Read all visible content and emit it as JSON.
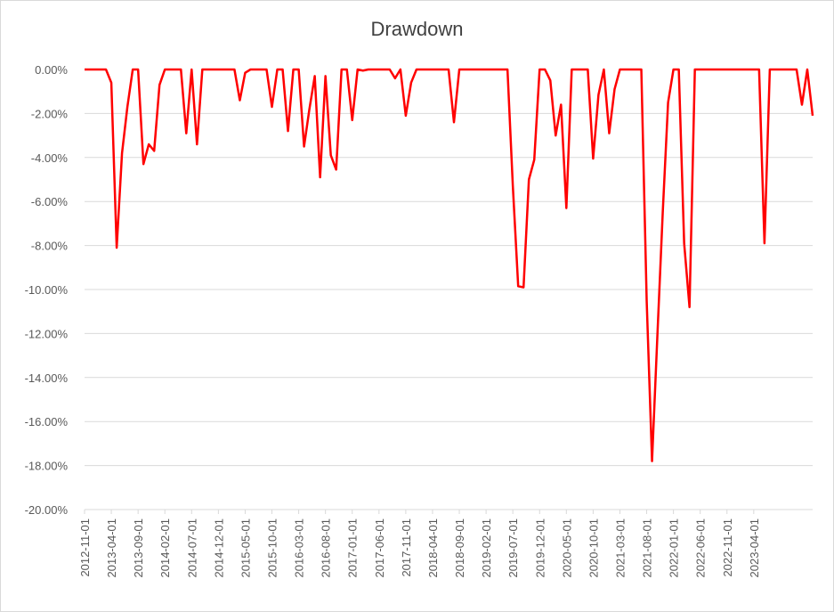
{
  "chart_data": {
    "type": "line",
    "title": "Drawdown",
    "xlabel": "",
    "ylabel": "",
    "ylim": [
      -20,
      0
    ],
    "y_tick_labels": [
      "0.00%",
      "-2.00%",
      "-4.00%",
      "-6.00%",
      "-8.00%",
      "-10.00%",
      "-12.00%",
      "-14.00%",
      "-16.00%",
      "-18.00%",
      "-20.00%"
    ],
    "x_tick_labels": [
      "2012-11-01",
      "2013-04-01",
      "2013-09-01",
      "2014-02-01",
      "2014-07-01",
      "2014-12-01",
      "2015-05-01",
      "2015-10-01",
      "2016-03-01",
      "2016-08-01",
      "2017-01-01",
      "2017-06-01",
      "2017-11-01",
      "2018-04-01",
      "2018-09-01",
      "2019-02-01",
      "2019-07-01",
      "2019-12-01",
      "2020-05-01",
      "2020-10-01",
      "2021-03-01",
      "2021-08-01",
      "2022-01-01",
      "2022-06-01",
      "2022-11-01",
      "2023-04-01"
    ],
    "grid": true,
    "legend": "none",
    "series": [
      {
        "color": "#ff0000",
        "x_start": "2012-11-01",
        "x_frequency": "monthly",
        "values": [
          0,
          0,
          0,
          0,
          0,
          -0.6,
          -8.1,
          -3.8,
          -1.7,
          0,
          0,
          -4.3,
          -3.4,
          -3.7,
          -0.7,
          0,
          0,
          0,
          0,
          -2.9,
          0,
          -3.4,
          0,
          0,
          0,
          0,
          0,
          0,
          0,
          -1.4,
          -0.15,
          0,
          0,
          0,
          0,
          -1.7,
          0,
          0,
          -2.8,
          0,
          0,
          -3.5,
          -1.8,
          -0.3,
          -4.9,
          -0.3,
          -3.9,
          -4.55,
          0,
          0,
          -2.3,
          0,
          -0.05,
          0,
          0,
          0,
          0,
          0,
          -0.4,
          0,
          -2.1,
          -0.6,
          0,
          0,
          0,
          0,
          0,
          0,
          0,
          -2.4,
          0,
          0,
          0,
          0,
          0,
          0,
          0,
          0,
          0,
          0,
          -5.3,
          -9.85,
          -9.9,
          -5,
          -4.1,
          0,
          0,
          -0.5,
          -3,
          -1.6,
          -6.3,
          0,
          0,
          0,
          0,
          -4.05,
          -1.15,
          0,
          -2.9,
          -0.9,
          0,
          0,
          0,
          0,
          0,
          -10.5,
          -17.8,
          -12.1,
          -6.5,
          -1.5,
          0,
          0,
          -7.9,
          -10.8,
          0,
          0,
          0,
          0,
          0,
          0,
          0,
          0,
          0,
          0,
          0,
          0,
          0,
          -7.9,
          0,
          0,
          0,
          0,
          0,
          0,
          -1.6,
          0,
          -2.1
        ]
      }
    ]
  }
}
